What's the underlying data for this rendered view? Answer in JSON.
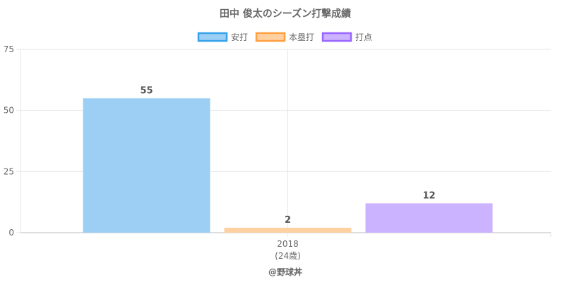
{
  "chart_data": {
    "type": "bar",
    "title": "田中 俊太のシーズン打撃成績",
    "categories": [
      "2018"
    ],
    "category_sublabels": [
      "(24歳)"
    ],
    "series": [
      {
        "name": "安打",
        "values": [
          55
        ],
        "fill": "#9dcff5",
        "stroke": "#36a2eb"
      },
      {
        "name": "本塁打",
        "values": [
          2
        ],
        "fill": "#ffd1a1",
        "stroke": "#ff9f40"
      },
      {
        "name": "打点",
        "values": [
          12
        ],
        "fill": "#cbb3ff",
        "stroke": "#9966ff"
      }
    ],
    "ylim": [
      0,
      75
    ],
    "yticks": [
      0,
      25,
      50,
      75
    ],
    "legend_position": "top",
    "grid": true
  },
  "footer": "@野球丼"
}
